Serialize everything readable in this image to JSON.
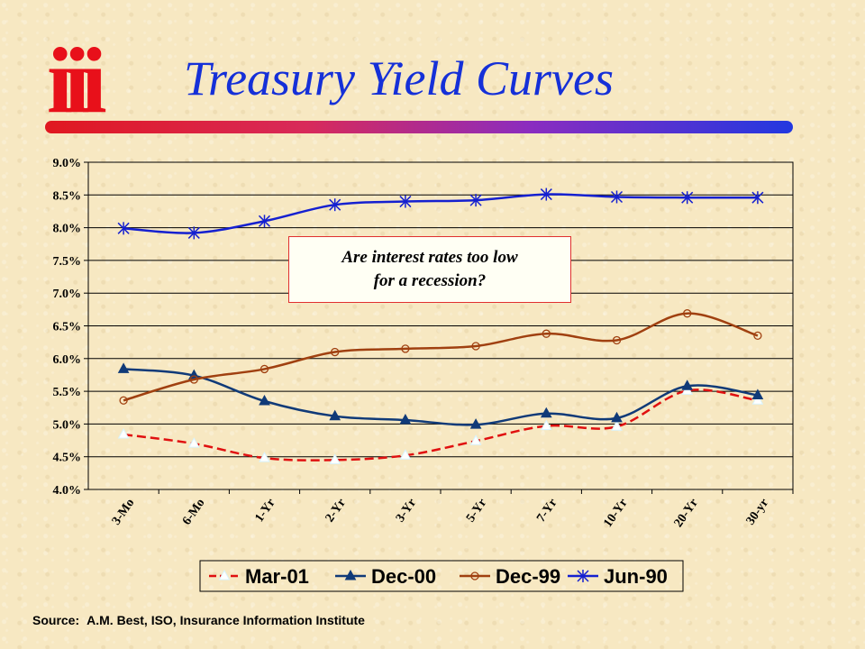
{
  "header": {
    "logo_text": "iii",
    "title": "Treasury Yield Curves"
  },
  "callout": {
    "line1": "Are interest rates too low",
    "line2": "for a recession?"
  },
  "source": {
    "label": "Source:",
    "text": "A.M. Best, ISO, Insurance Information Institute"
  },
  "colors": {
    "title": "#1530d8",
    "logo": "#e8101a",
    "mar01": "#e01010",
    "dec00": "#103a78",
    "dec99": "#a04010",
    "jun90": "#1520d0",
    "mar01_marker": "#ffffff"
  },
  "chart_data": {
    "type": "line",
    "title": "",
    "xlabel": "",
    "ylabel": "",
    "categories": [
      "3-Mo",
      "6-Mo",
      "1-Yr",
      "2-Yr",
      "3-Yr",
      "5-Yr",
      "7-Yr",
      "10-Yr",
      "20-Yr",
      "30-yr"
    ],
    "ylim": [
      4.0,
      9.0
    ],
    "yticks": [
      4.0,
      4.5,
      5.0,
      5.5,
      6.0,
      6.5,
      7.0,
      7.5,
      8.0,
      8.5,
      9.0
    ],
    "ytick_labels": [
      "4.0%",
      "4.5%",
      "5.0%",
      "5.5%",
      "6.0%",
      "6.5%",
      "7.0%",
      "7.5%",
      "8.0%",
      "8.5%",
      "9.0%"
    ],
    "grid": true,
    "legend_position": "bottom",
    "series": [
      {
        "name": "Mar-01",
        "values": [
          4.84,
          4.7,
          4.48,
          4.45,
          4.52,
          4.74,
          4.97,
          4.96,
          5.51,
          5.36
        ],
        "line": "dashed",
        "marker": "triangle-open"
      },
      {
        "name": "Dec-00",
        "values": [
          5.84,
          5.74,
          5.35,
          5.12,
          5.06,
          4.99,
          5.16,
          5.09,
          5.58,
          5.44
        ],
        "line": "solid",
        "marker": "triangle"
      },
      {
        "name": "Dec-99",
        "values": [
          5.36,
          5.68,
          5.84,
          6.1,
          6.15,
          6.19,
          6.38,
          6.28,
          6.69,
          6.35
        ],
        "line": "solid",
        "marker": "circle-open"
      },
      {
        "name": "Jun-90",
        "values": [
          7.99,
          7.92,
          8.1,
          8.35,
          8.4,
          8.42,
          8.51,
          8.47,
          8.46,
          8.46
        ],
        "line": "solid",
        "marker": "star"
      }
    ]
  }
}
